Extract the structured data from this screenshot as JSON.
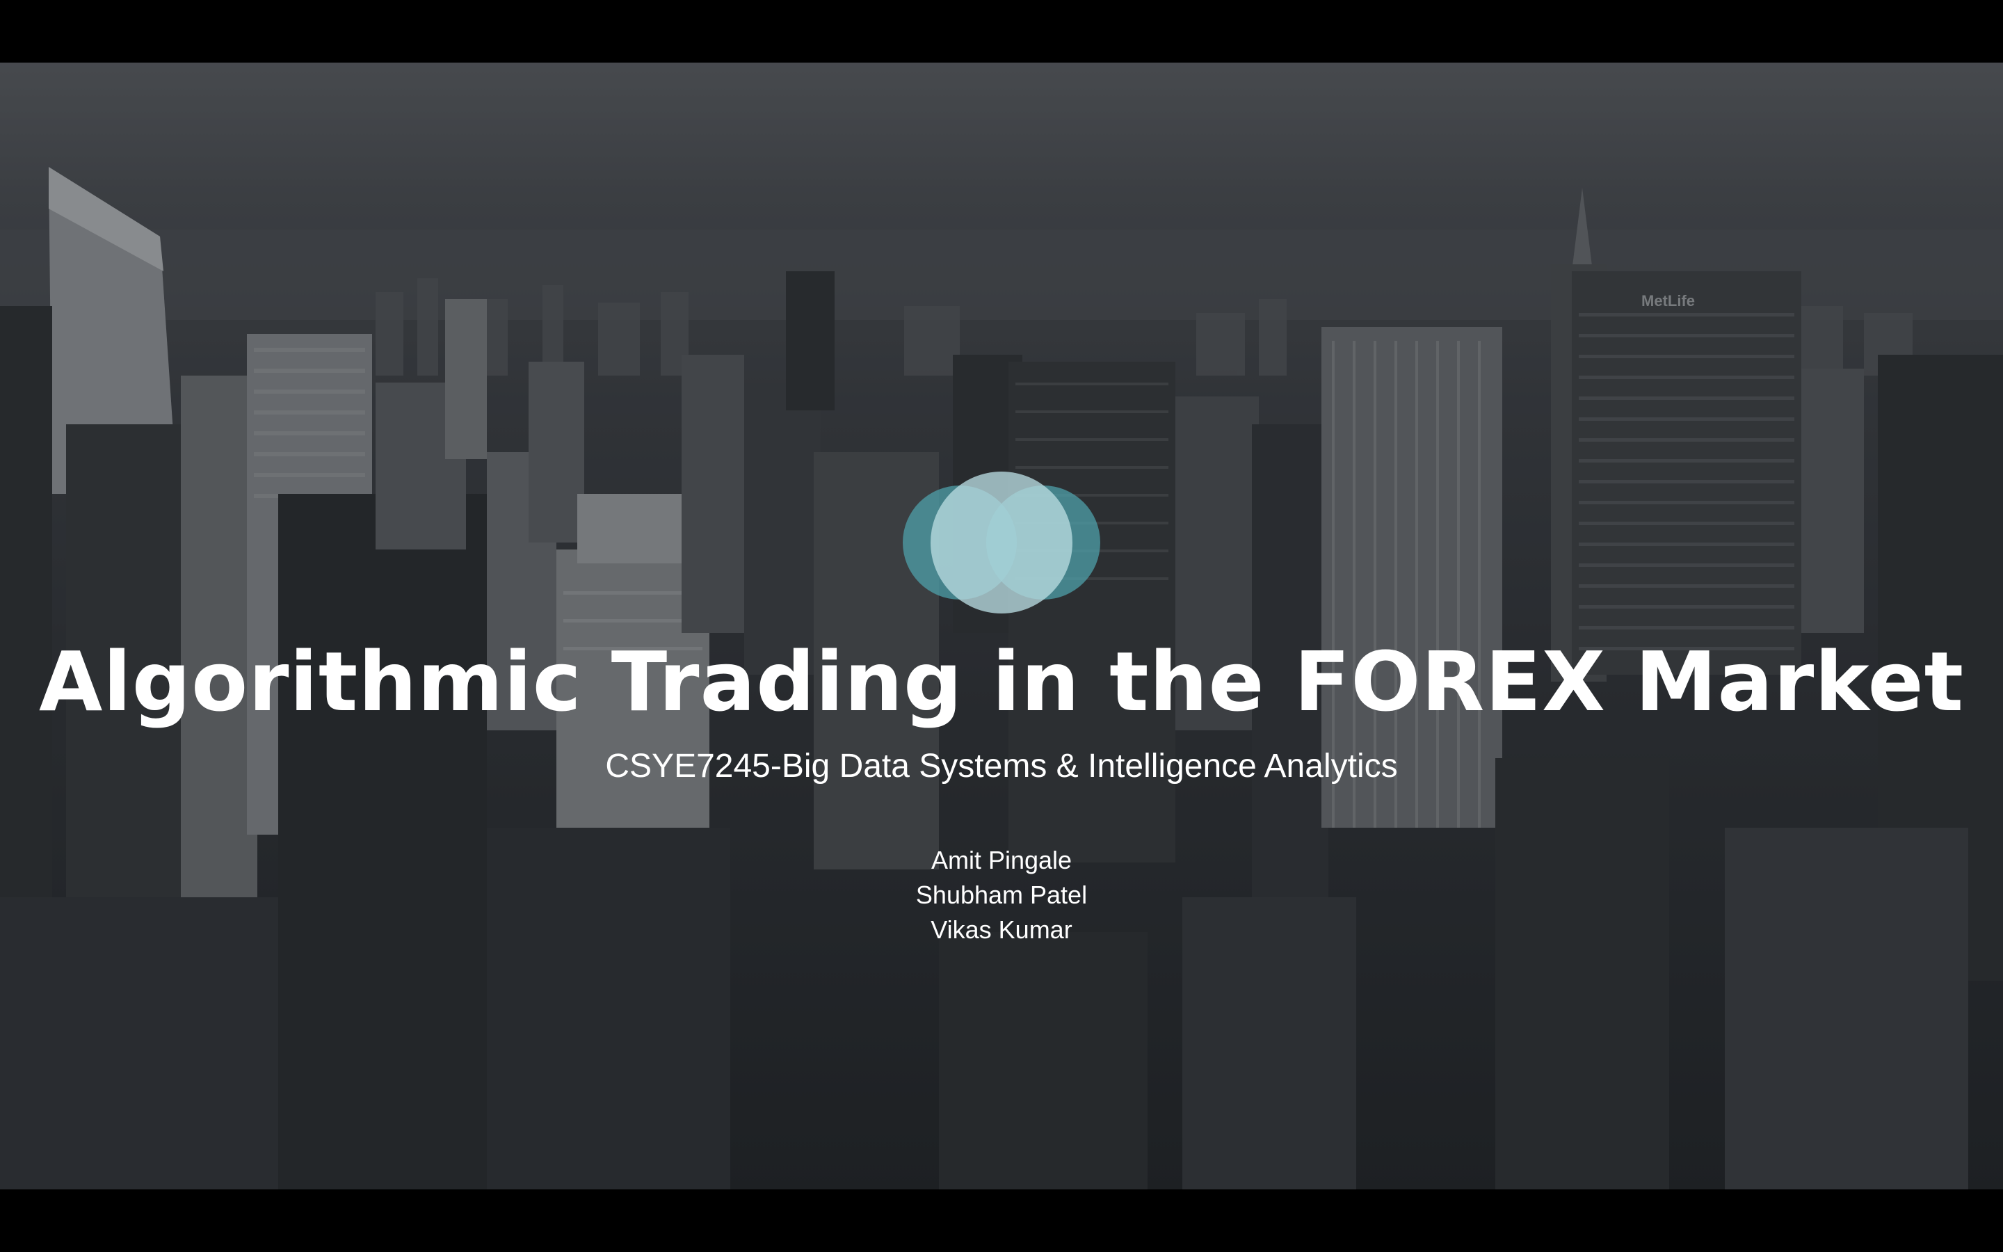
{
  "slide": {
    "title": "Algorithmic Trading in the FOREX Market",
    "subtitle": "CSYE7245-Big Data Systems & Intelligence Analytics",
    "authors": [
      "Amit Pingale",
      "Shubham Patel",
      "Vikas Kumar"
    ],
    "building_sign": "MetLife"
  },
  "theme": {
    "logo_circle_color": "#4fa3ad",
    "logo_center_color": "#b9dbe0",
    "text_color": "#ffffff",
    "letterbox_color": "#000000"
  },
  "icons": {
    "logo": "overlapping-circles-icon"
  }
}
